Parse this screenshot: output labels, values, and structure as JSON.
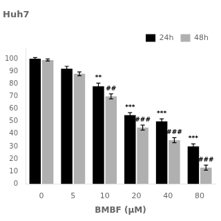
{
  "chart_data": {
    "type": "bar",
    "title": "Huh7",
    "xlabel": "BMBF (μM)",
    "categories": [
      "0",
      "5",
      "10",
      "20",
      "40",
      "80"
    ],
    "series": [
      {
        "name": "24h",
        "color": "#000000",
        "values": [
          100,
          92,
          78,
          55,
          50,
          30
        ],
        "errors": [
          1.0,
          2.0,
          2.5,
          2.0,
          2.0,
          2.0
        ],
        "annotations": [
          null,
          null,
          "**",
          "***",
          "***",
          "***"
        ]
      },
      {
        "name": "48h",
        "color": "#b0b0b0",
        "values": [
          99,
          88,
          70,
          45,
          35,
          13
        ],
        "errors": [
          0.8,
          1.5,
          2.0,
          2.0,
          2.0,
          2.0
        ],
        "annotations": [
          null,
          null,
          "##",
          "###",
          "###",
          "###"
        ]
      }
    ],
    "ylim": [
      0,
      108
    ],
    "yticks": [
      0,
      10,
      20,
      30,
      40,
      50,
      60,
      70,
      80,
      90,
      100
    ],
    "grid": false,
    "legend": "upper right"
  }
}
